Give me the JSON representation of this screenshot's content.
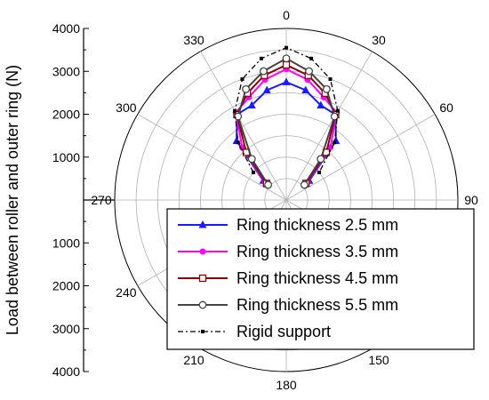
{
  "chart_data": {
    "type": "polar-line",
    "ylabel": "Load between roller and outer ring (N)",
    "radial_range": [
      0,
      4000
    ],
    "radial_ticks": [
      1000,
      2000,
      3000,
      4000
    ],
    "radial_tick_labels": [
      "1000",
      "2000",
      "3000",
      "4000"
    ],
    "angular_ticks": [
      0,
      30,
      60,
      90,
      150,
      180,
      210,
      240,
      270,
      300,
      330
    ],
    "angular_tick_labels": [
      "0",
      "30",
      "60",
      "90",
      "150",
      "180",
      "210",
      "240",
      "270",
      "300",
      "330"
    ],
    "angle_zero": "top",
    "angle_direction": "clockwise",
    "grid": true,
    "legend_position": "bottom-right",
    "angles_deg": [
      -50,
      -40,
      -30,
      -20,
      -10,
      0,
      10,
      20,
      30,
      40,
      50
    ],
    "series": [
      {
        "name": "Ring thickness 2.5 mm",
        "color": "#1a1aff",
        "marker": "triangle",
        "line": "solid",
        "values": [
          700,
          1800,
          2300,
          2350,
          2600,
          2750,
          2600,
          2350,
          2300,
          1800,
          700
        ]
      },
      {
        "name": "Ring thickness 3.5 mm",
        "color": "#ff00ff",
        "marker": "circle",
        "line": "solid",
        "values": [
          650,
          1600,
          2350,
          2550,
          2850,
          3050,
          2850,
          2550,
          2350,
          1600,
          650
        ]
      },
      {
        "name": "Ring thickness 4.5 mm",
        "color": "#8b0000",
        "marker": "square-open",
        "line": "solid",
        "values": [
          600,
          1450,
          2300,
          2650,
          2950,
          3150,
          2950,
          2650,
          2300,
          1450,
          600
        ]
      },
      {
        "name": "Ring thickness 5.5 mm",
        "color": "#444444",
        "marker": "circle-open",
        "line": "solid",
        "values": [
          550,
          1250,
          2250,
          2750,
          3050,
          3300,
          3050,
          2750,
          2250,
          1250,
          550
        ]
      },
      {
        "name": "Rigid support",
        "color": "#000000",
        "marker": "square-small",
        "line": "dashdot",
        "values": [
          1000,
          1750,
          2400,
          3000,
          3350,
          3550,
          3350,
          3000,
          2400,
          1750,
          1000
        ]
      }
    ]
  }
}
